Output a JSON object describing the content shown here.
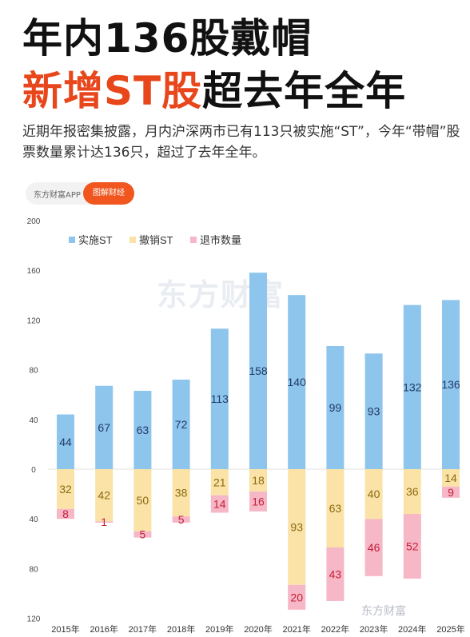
{
  "headline": {
    "line1": "年内136股戴帽",
    "line2_red": "新增ST股",
    "line2_black": "超去年全年"
  },
  "description": "近期年报密集披露，月内沪深两市已有113只被实施“ST”，今年“带帽”股票数量累计达136只，超过了去年全年。",
  "source_tag": {
    "app": "东方财富APP",
    "pill": "图解财经"
  },
  "watermark": "东方财富",
  "watermark_bottom": "东方财富",
  "colors": {
    "implemented": "#8ec5ec",
    "revoked": "#fbe3a7",
    "delisted": "#f6b7c6",
    "label_implemented": "#1f3b66",
    "label_revoked": "#8a6a14",
    "label_delisted": "#c4203b"
  },
  "chart_data": {
    "type": "bar",
    "categories": [
      "2015年",
      "2016年",
      "2017年",
      "2018年",
      "2019年",
      "2020年",
      "2021年",
      "2022年",
      "2023年",
      "2024年",
      "2025年"
    ],
    "series": [
      {
        "name": "实施ST",
        "values": [
          44,
          67,
          63,
          72,
          113,
          158,
          140,
          99,
          93,
          132,
          136
        ],
        "direction": "up"
      },
      {
        "name": "撤销ST",
        "values": [
          32,
          42,
          50,
          38,
          21,
          18,
          93,
          63,
          40,
          36,
          14
        ],
        "direction": "down"
      },
      {
        "name": "退市数量",
        "values": [
          8,
          1,
          5,
          5,
          14,
          16,
          20,
          43,
          46,
          52,
          9
        ],
        "direction": "down",
        "stacked_below": "撤销ST"
      }
    ],
    "y_ticks_up": [
      200,
      160,
      120,
      80,
      40,
      0
    ],
    "y_ticks_down": [
      40,
      80,
      120
    ],
    "ylim": [
      -120,
      200
    ],
    "legend_position": "top-left",
    "grid": false
  }
}
